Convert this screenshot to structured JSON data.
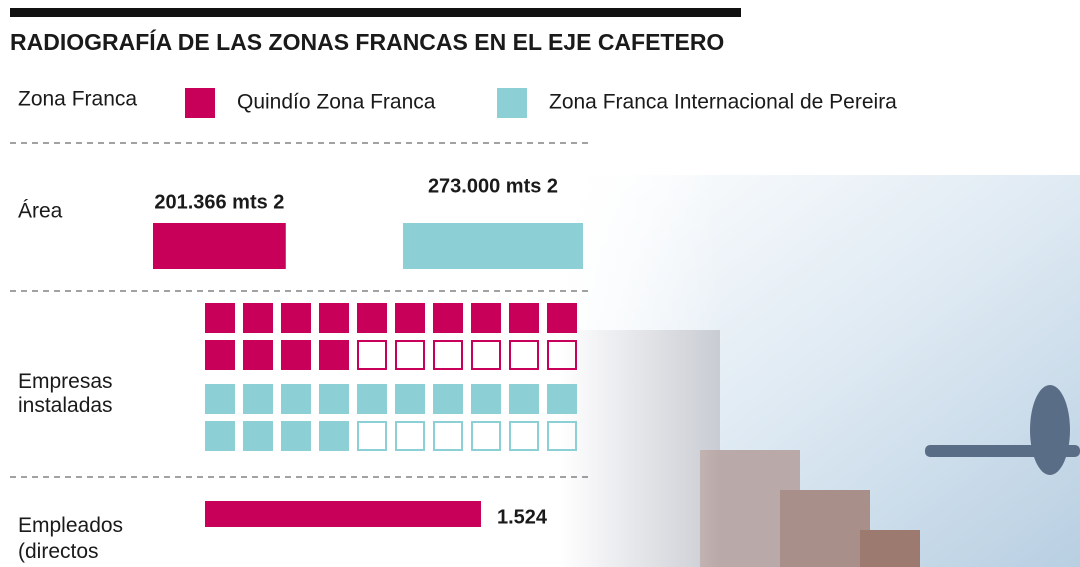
{
  "title": "RADIOGRAFÍA DE LAS ZONAS FRANCAS EN EL EJE CAFETERO",
  "legend": {
    "label": "Zona Franca",
    "series": [
      {
        "name": "Quindío Zona Franca",
        "color": "#c8005a"
      },
      {
        "name": "Zona Franca Internacional de Pereira",
        "color": "#8ccfd4"
      }
    ]
  },
  "rows": [
    {
      "label": "Área",
      "values": [
        201366,
        273000
      ],
      "value_labels": [
        "201.366 mts 2",
        "273.000 mts 2"
      ]
    },
    {
      "label": "Empresas instaladas",
      "values": [
        14,
        14
      ],
      "total": 20
    },
    {
      "label": "Empleados (directos",
      "values": [
        1524
      ],
      "value_labels": [
        "1.524"
      ]
    }
  ]
}
